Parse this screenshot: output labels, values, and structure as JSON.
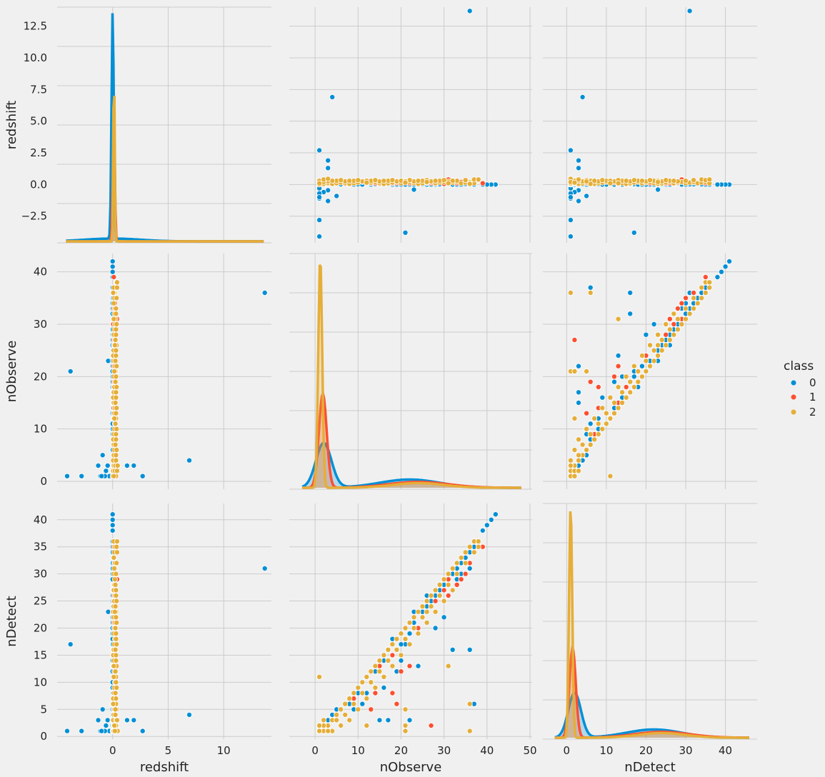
{
  "chart_data": {
    "type": "scatter",
    "title": "",
    "variables": [
      "redshift",
      "nObserve",
      "nDetect"
    ],
    "axis_labels": {
      "x": [
        "redshift",
        "nObserve",
        "nDetect"
      ],
      "y": [
        "redshift",
        "nObserve",
        "nDetect"
      ]
    },
    "axes": {
      "redshift": {
        "range": [
          -4.6,
          14.0
        ],
        "ticks": [
          -2.5,
          0.0,
          2.5,
          5.0,
          7.5,
          10.0,
          12.5
        ],
        "tick_labels": [
          "−2.5",
          "0.0",
          "2.5",
          "5.0",
          "7.5",
          "10.0",
          "12.5"
        ]
      },
      "nObserve": {
        "range": [
          -1.5,
          43.5
        ],
        "ticks": [
          0,
          10,
          20,
          30,
          40
        ],
        "tick_labels": [
          "0",
          "10",
          "20",
          "30",
          "40"
        ]
      },
      "nDetect": {
        "range": [
          -0.5,
          43.0
        ],
        "ticks": [
          0,
          5,
          10,
          15,
          20,
          25,
          30,
          35,
          40
        ],
        "tick_labels": [
          "0",
          "5",
          "10",
          "15",
          "20",
          "25",
          "30",
          "35",
          "40"
        ]
      }
    },
    "x_axes": {
      "redshift": {
        "range": [
          -5.0,
          14.3
        ],
        "ticks": [
          0,
          5,
          10
        ],
        "tick_labels": [
          "0",
          "5",
          "10"
        ]
      },
      "nObserve": {
        "range": [
          -6.0,
          50.5
        ],
        "ticks": [
          0,
          10,
          20,
          30,
          40,
          50
        ],
        "tick_labels": [
          "0",
          "10",
          "20",
          "30",
          "40",
          "50"
        ]
      },
      "nDetect": {
        "range": [
          -6.0,
          48.0
        ],
        "ticks": [
          0,
          10,
          20,
          30,
          40
        ],
        "tick_labels": [
          "0",
          "10",
          "20",
          "30",
          "40"
        ]
      }
    },
    "legend": {
      "title": "class",
      "placement": "right",
      "entries": [
        {
          "label": "0",
          "color": "#008fd5"
        },
        {
          "label": "1",
          "color": "#fc4f30"
        },
        {
          "label": "2",
          "color": "#e5ae38"
        }
      ]
    },
    "grid": true,
    "series": [
      {
        "name": "0",
        "color": "#008fd5",
        "points": [
          [
            13.7,
            36,
            31
          ],
          [
            6.9,
            4,
            4
          ],
          [
            2.7,
            1,
            1
          ],
          [
            1.9,
            3,
            3
          ],
          [
            1.3,
            3,
            3
          ],
          [
            -0.4,
            23,
            23
          ],
          [
            -0.45,
            3,
            3
          ],
          [
            -0.6,
            2,
            2
          ],
          [
            -0.9,
            5,
            5
          ],
          [
            -1.1,
            1,
            1
          ],
          [
            -1.3,
            3,
            3
          ],
          [
            -2.8,
            1,
            1
          ],
          [
            -3.8,
            21,
            17
          ],
          [
            -4.1,
            1,
            1
          ],
          [
            -0.3,
            1,
            1
          ],
          [
            -0.7,
            1,
            1
          ],
          [
            -1.0,
            1,
            1
          ],
          [
            0.0,
            42,
            41
          ],
          [
            0.0,
            41,
            40
          ],
          [
            0.0,
            40,
            39
          ],
          [
            0.0,
            39,
            38
          ],
          [
            0.0,
            37,
            36
          ],
          [
            0.0,
            37,
            35
          ],
          [
            0.02,
            36,
            34
          ],
          [
            0.05,
            35,
            33
          ],
          [
            0.02,
            34,
            32
          ],
          [
            0.02,
            33,
            31
          ],
          [
            0.0,
            32,
            30
          ],
          [
            0.05,
            30,
            28
          ],
          [
            0.02,
            29,
            27
          ],
          [
            0.0,
            28,
            26
          ],
          [
            0.05,
            26,
            24
          ],
          [
            0.02,
            25,
            23
          ],
          [
            0.0,
            23,
            21
          ],
          [
            0.03,
            25,
            22
          ],
          [
            0.04,
            27,
            24
          ],
          [
            0.05,
            26,
            25
          ],
          [
            0.0,
            21,
            17
          ],
          [
            0.03,
            20,
            17
          ],
          [
            0.02,
            18,
            15
          ],
          [
            0.01,
            16,
            14
          ],
          [
            0.03,
            14,
            12
          ],
          [
            0.0,
            13,
            10
          ],
          [
            0.05,
            12,
            8
          ],
          [
            0.02,
            10,
            8
          ],
          [
            0.01,
            8,
            6
          ],
          [
            0.02,
            6,
            5
          ],
          [
            0.03,
            4,
            4
          ],
          [
            0.0,
            2,
            2
          ],
          [
            0.0,
            17,
            3
          ],
          [
            0.0,
            26,
            26
          ],
          [
            0.0,
            36,
            16
          ],
          [
            0.0,
            37,
            6
          ],
          [
            0.0,
            20,
            14
          ],
          [
            0.0,
            22,
            3
          ],
          [
            0.0,
            19,
            12
          ],
          [
            0.0,
            15,
            3
          ],
          [
            0.0,
            18,
            18
          ],
          [
            0.0,
            11,
            6
          ],
          [
            0.0,
            9,
            5
          ],
          [
            0.0,
            24,
            13
          ],
          [
            0.0,
            28,
            20
          ],
          [
            0.0,
            32,
            16
          ],
          [
            0.0,
            30,
            22
          ],
          [
            0.0,
            33,
            29
          ],
          [
            0.0,
            34,
            30
          ],
          [
            0.0,
            27,
            25
          ],
          [
            0.0,
            22,
            19
          ],
          [
            0.0,
            16,
            9
          ]
        ]
      },
      {
        "name": "1",
        "color": "#fc4f30",
        "points": [
          [
            0.3,
            31,
            29
          ],
          [
            0.4,
            31,
            29
          ],
          [
            0.2,
            35,
            30
          ],
          [
            0.1,
            39,
            35
          ],
          [
            0.15,
            36,
            32
          ],
          [
            0.2,
            34,
            29
          ],
          [
            0.05,
            30,
            27
          ],
          [
            0.1,
            25,
            22
          ],
          [
            0.15,
            24,
            20
          ],
          [
            0.08,
            28,
            25
          ],
          [
            0.1,
            22,
            21
          ],
          [
            0.2,
            20,
            12
          ],
          [
            0.1,
            18,
            15
          ],
          [
            0.05,
            15,
            13
          ],
          [
            0.12,
            12,
            11
          ],
          [
            0.1,
            9,
            7
          ],
          [
            0.05,
            7,
            6
          ],
          [
            0.1,
            5,
            3
          ],
          [
            0.08,
            3,
            2
          ],
          [
            0.1,
            2,
            1
          ],
          [
            0.12,
            26,
            23
          ],
          [
            0.1,
            27,
            2
          ],
          [
            0.05,
            17,
            16
          ],
          [
            0.1,
            33,
            28
          ],
          [
            0.1,
            14,
            8
          ],
          [
            0.1,
            22,
            13
          ],
          [
            0.1,
            19,
            6
          ],
          [
            0.1,
            31,
            26
          ],
          [
            0.1,
            18,
            8
          ],
          [
            0.1,
            13,
            5
          ]
        ]
      },
      {
        "name": "2",
        "color": "#e5ae38",
        "points": [
          [
            0.0,
            1,
            1
          ],
          [
            0.05,
            2,
            1
          ],
          [
            0.1,
            3,
            2
          ],
          [
            0.05,
            4,
            3
          ],
          [
            0.1,
            5,
            4
          ],
          [
            0.15,
            6,
            5
          ],
          [
            0.1,
            7,
            6
          ],
          [
            0.05,
            8,
            7
          ],
          [
            0.1,
            9,
            8
          ],
          [
            0.15,
            10,
            9
          ],
          [
            0.2,
            11,
            10
          ],
          [
            0.1,
            12,
            11
          ],
          [
            0.15,
            13,
            12
          ],
          [
            0.2,
            14,
            13
          ],
          [
            0.1,
            15,
            14
          ],
          [
            0.05,
            16,
            15
          ],
          [
            0.1,
            17,
            16
          ],
          [
            0.15,
            18,
            17
          ],
          [
            0.2,
            19,
            18
          ],
          [
            0.1,
            20,
            19
          ],
          [
            0.15,
            21,
            20
          ],
          [
            0.2,
            22,
            21
          ],
          [
            0.1,
            23,
            22
          ],
          [
            0.05,
            24,
            23
          ],
          [
            0.1,
            25,
            24
          ],
          [
            0.15,
            26,
            25
          ],
          [
            0.2,
            27,
            26
          ],
          [
            0.1,
            28,
            27
          ],
          [
            0.15,
            29,
            28
          ],
          [
            0.2,
            30,
            29
          ],
          [
            0.1,
            31,
            30
          ],
          [
            0.15,
            32,
            31
          ],
          [
            0.2,
            33,
            32
          ],
          [
            0.1,
            34,
            33
          ],
          [
            0.15,
            35,
            34
          ],
          [
            0.2,
            36,
            35
          ],
          [
            0.1,
            37,
            36
          ],
          [
            0.25,
            3,
            1
          ],
          [
            0.3,
            5,
            3
          ],
          [
            0.25,
            7,
            4
          ],
          [
            0.3,
            9,
            6
          ],
          [
            0.25,
            11,
            8
          ],
          [
            0.3,
            13,
            10
          ],
          [
            0.25,
            15,
            12
          ],
          [
            0.3,
            17,
            14
          ],
          [
            0.25,
            19,
            16
          ],
          [
            0.3,
            21,
            18
          ],
          [
            0.25,
            23,
            20
          ],
          [
            0.3,
            25,
            22
          ],
          [
            0.25,
            27,
            24
          ],
          [
            0.3,
            29,
            26
          ],
          [
            0.25,
            31,
            28
          ],
          [
            0.3,
            33,
            30
          ],
          [
            0.35,
            35,
            32
          ],
          [
            0.4,
            37,
            34
          ],
          [
            0.35,
            38,
            35
          ],
          [
            0.4,
            38,
            36
          ],
          [
            0.3,
            4,
            1
          ],
          [
            0.35,
            6,
            2
          ],
          [
            0.3,
            8,
            3
          ],
          [
            0.35,
            10,
            5
          ],
          [
            0.3,
            12,
            7
          ],
          [
            0.35,
            14,
            9
          ],
          [
            0.3,
            16,
            11
          ],
          [
            0.35,
            18,
            13
          ],
          [
            0.3,
            20,
            15
          ],
          [
            0.35,
            22,
            17
          ],
          [
            0.3,
            24,
            19
          ],
          [
            0.35,
            26,
            21
          ],
          [
            0.3,
            28,
            23
          ],
          [
            0.35,
            30,
            25
          ],
          [
            0.3,
            32,
            27
          ],
          [
            0.15,
            1,
            1
          ],
          [
            0.2,
            2,
            2
          ],
          [
            0.3,
            1,
            2
          ],
          [
            0.4,
            2,
            3
          ],
          [
            0.45,
            3,
            1
          ],
          [
            0.1,
            36,
            1
          ],
          [
            0.05,
            36,
            6
          ],
          [
            0.2,
            21,
            1
          ],
          [
            0.25,
            21,
            5
          ],
          [
            0.1,
            31,
            13
          ],
          [
            0.15,
            21,
            2
          ],
          [
            0.2,
            26,
            23
          ],
          [
            0.1,
            1,
            11
          ],
          [
            0.15,
            12,
            2
          ]
        ]
      }
    ],
    "kde_note": "diagonal panels show stacked kde per class"
  }
}
